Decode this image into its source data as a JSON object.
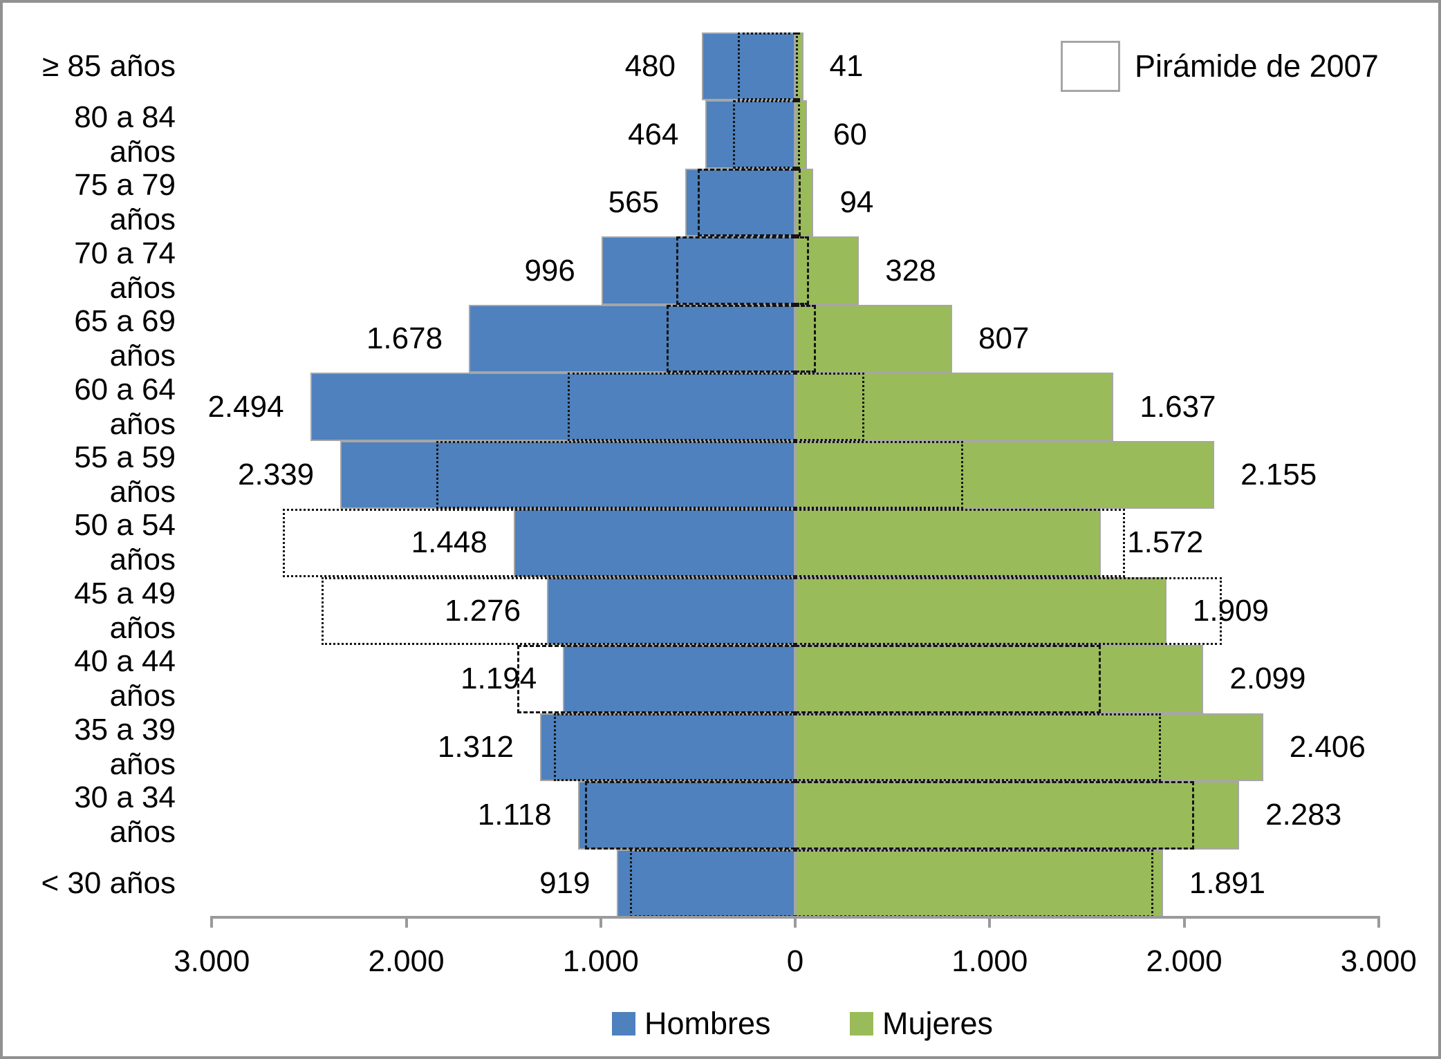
{
  "legend_overlay": {
    "label": "Pirámide de 2007"
  },
  "legend_bottom": {
    "hombres": "Hombres",
    "mujeres": "Mujeres"
  },
  "colors": {
    "hombres": "#4e81bd",
    "mujeres": "#9abb59",
    "bar_border": "#a6a6a6",
    "axis": "#9a9a9a",
    "overlay_line": "#141414",
    "frame_border": "#919191"
  },
  "x_axis": {
    "tick_labels": [
      "3.000",
      "2.000",
      "1.000",
      "0",
      "1.000",
      "2.000",
      "3.000"
    ],
    "tick_values": [
      -3000,
      -2000,
      -1000,
      0,
      1000,
      2000,
      3000
    ]
  },
  "chart_data": {
    "type": "bar",
    "subtype": "population-pyramid-horizontal",
    "title": "",
    "xlabel": "",
    "ylabel": "",
    "xlim": [
      -3000,
      3000
    ],
    "grid": false,
    "legend_position": "bottom (series) + top-right box (overlay)",
    "categories": [
      "≥ 85 años",
      "80 a 84 años",
      "75 a 79 años",
      "70 a 74 años",
      "65 a 69 años",
      "60 a 64 años",
      "55 a 59 años",
      "50 a 54 años",
      "45 a 49 años",
      "40 a 44 años",
      "35 a 39 años",
      "30 a 34 años",
      "< 30 años"
    ],
    "series": [
      {
        "name": "Hombres",
        "values": [
          480,
          464,
          565,
          996,
          1678,
          2494,
          2339,
          1448,
          1276,
          1194,
          1312,
          1118,
          919
        ],
        "labels": [
          "480",
          "464",
          "565",
          "996",
          "1.678",
          "2.494",
          "2.339",
          "1.448",
          "1.276",
          "1.194",
          "1.312",
          "1.118",
          "919"
        ]
      },
      {
        "name": "Mujeres",
        "values": [
          41,
          60,
          94,
          328,
          807,
          1637,
          2155,
          1572,
          1909,
          2099,
          2406,
          2283,
          1891
        ],
        "labels": [
          "41",
          "60",
          "94",
          "328",
          "807",
          "1.637",
          "2.155",
          "1.572",
          "1.909",
          "2.099",
          "2.406",
          "2.283",
          "1.891"
        ]
      },
      {
        "name": "Pirámide de 2007 — Hombres (contorno, estimado de la figura)",
        "values": [
          295,
          320,
          500,
          610,
          660,
          1170,
          1845,
          2635,
          2435,
          1430,
          1240,
          1080,
          850
        ]
      },
      {
        "name": "Pirámide de 2007 — Mujeres (contorno, estimado de la figura)",
        "values": [
          15,
          25,
          30,
          70,
          105,
          355,
          865,
          1695,
          2195,
          1570,
          1880,
          2050,
          1840
        ]
      }
    ],
    "overlay_border_styles": [
      "dotted",
      "dotted",
      "dashed",
      "dashed",
      "dashed",
      "dotted",
      "dotted",
      "dotted",
      "dotted",
      "dashed",
      "dotted",
      "dashed",
      "dotted"
    ]
  }
}
